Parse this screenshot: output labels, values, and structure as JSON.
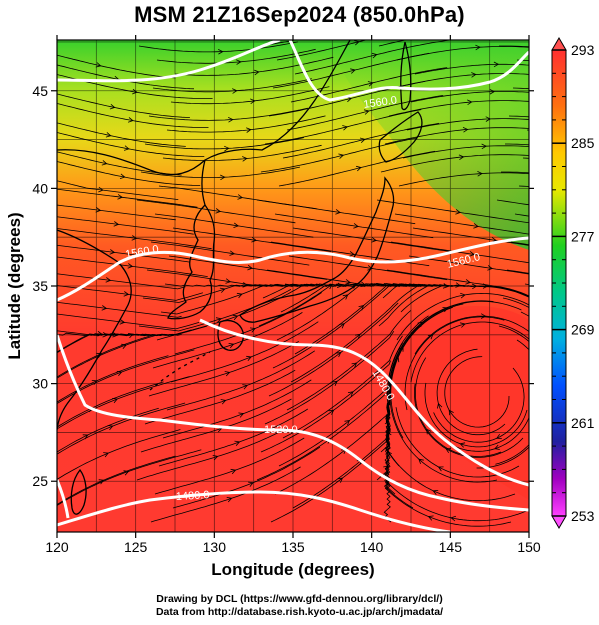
{
  "title": "MSM 21Z16Sep2024 (850.0hPa)",
  "x_axis": {
    "label": "Longitude (degrees)",
    "ticks": [
      "120",
      "125",
      "130",
      "135",
      "140",
      "145",
      "150"
    ],
    "range": [
      120,
      150
    ]
  },
  "y_axis": {
    "label": "Latitude  (degrees)",
    "ticks": [
      "25",
      "30",
      "35",
      "40",
      "45"
    ],
    "range": [
      22.4,
      47.6
    ]
  },
  "colorbar": {
    "labels": [
      "293",
      "285",
      "277",
      "269",
      "261",
      "253"
    ],
    "range": [
      253,
      293
    ],
    "colors_top_to_bottom": [
      "#ff3030",
      "#ff8c00",
      "#ffe000",
      "#20d020",
      "#00c8c8",
      "#0050ff",
      "#2020a0",
      "#ff40ff"
    ]
  },
  "contour_labels": [
    "1560.0",
    "1560.0",
    "1560.0",
    "1520.0",
    "1480.0",
    "1480.0",
    "1480.0"
  ],
  "credits": [
    "Drawing by DCL (https://www.gfd-dennou.org/library/dcl/)",
    "Data from http://database.rish.kyoto-u.ac.jp/arch/jmadata/"
  ],
  "colors": {
    "warm": "#ff3a2e",
    "mid": "#ff7a18",
    "cool": "#d8e020",
    "cold": "#40d030",
    "contour": "#ffffff",
    "streamline": "#000000"
  }
}
